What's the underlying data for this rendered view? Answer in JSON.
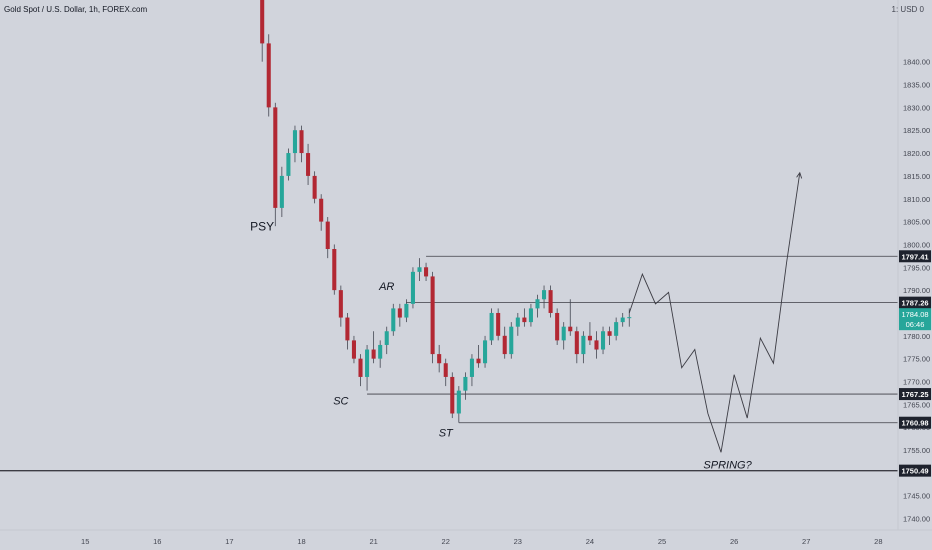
{
  "header": {
    "title": "Gold Spot / U.S. Dollar, 1h, FOREX.com",
    "currency": "1: USD 0"
  },
  "colors": {
    "up": "#26a69a",
    "down": "#b22833",
    "wick": "#434651",
    "line": "#3c3c44",
    "bg": "#d1d4dc",
    "live": "#26a69a"
  },
  "chart_data": {
    "type": "candlestick",
    "title": "Gold Spot / U.S. Dollar, 1h, FOREX.com",
    "x_tick_labels": [
      "15",
      "16",
      "17",
      "18",
      "21",
      "22",
      "23",
      "24",
      "25",
      "26",
      "27",
      "28"
    ],
    "x_tick_index": [
      -41,
      -30,
      -19,
      -8,
      3,
      14,
      25,
      36,
      47,
      58,
      69,
      80
    ],
    "y_tick_labels": [
      "1740.00",
      "1745.00",
      "1750.00",
      "1755.00",
      "1760.00",
      "1765.00",
      "1770.00",
      "1775.00",
      "1780.00",
      "1785.00",
      "1790.00",
      "1795.00",
      "1800.00",
      "1805.00",
      "1810.00",
      "1815.00",
      "1820.00",
      "1825.00",
      "1830.00",
      "1835.00",
      "1840.00"
    ],
    "ylim": [
      1737.5,
      1853.5
    ],
    "xlim": [
      -54,
      83
    ],
    "candles": [
      [
        1857,
        1858,
        1840,
        1844
      ],
      [
        1844,
        1846,
        1828,
        1830
      ],
      [
        1830,
        1831,
        1804,
        1808
      ],
      [
        1808,
        1817,
        1806,
        1815
      ],
      [
        1815,
        1821,
        1814,
        1820
      ],
      [
        1820,
        1826,
        1818,
        1825
      ],
      [
        1825,
        1826,
        1818,
        1820
      ],
      [
        1820,
        1822,
        1813,
        1815
      ],
      [
        1815,
        1816,
        1809,
        1810
      ],
      [
        1810,
        1811,
        1803,
        1805
      ],
      [
        1805,
        1806,
        1797,
        1799
      ],
      [
        1799,
        1800,
        1789,
        1790
      ],
      [
        1790,
        1791,
        1782,
        1784
      ],
      [
        1784,
        1785,
        1777,
        1779
      ],
      [
        1779,
        1780,
        1774,
        1775
      ],
      [
        1775,
        1776,
        1769,
        1771
      ],
      [
        1771,
        1778,
        1768,
        1777
      ],
      [
        1777,
        1781,
        1774,
        1775
      ],
      [
        1775,
        1779,
        1773,
        1778
      ],
      [
        1778,
        1782,
        1776,
        1781
      ],
      [
        1781,
        1787,
        1780,
        1786
      ],
      [
        1786,
        1787,
        1782,
        1784
      ],
      [
        1784,
        1788,
        1783,
        1787
      ],
      [
        1787,
        1795,
        1786,
        1794
      ],
      [
        1794,
        1797,
        1792,
        1795
      ],
      [
        1795,
        1796,
        1792,
        1793
      ],
      [
        1793,
        1794,
        1774,
        1776
      ],
      [
        1776,
        1778,
        1772,
        1774
      ],
      [
        1774,
        1775,
        1769,
        1771
      ],
      [
        1771,
        1772,
        1762,
        1763
      ],
      [
        1763,
        1769,
        1761,
        1768
      ],
      [
        1768,
        1772,
        1766,
        1771
      ],
      [
        1771,
        1776,
        1769,
        1775
      ],
      [
        1775,
        1778,
        1773,
        1774
      ],
      [
        1774,
        1780,
        1773,
        1779
      ],
      [
        1779,
        1786,
        1778,
        1785
      ],
      [
        1785,
        1786,
        1779,
        1780
      ],
      [
        1780,
        1782,
        1775,
        1776
      ],
      [
        1776,
        1783,
        1775,
        1782
      ],
      [
        1782,
        1785,
        1780,
        1784
      ],
      [
        1784,
        1786,
        1782,
        1783
      ],
      [
        1783,
        1787,
        1782,
        1786
      ],
      [
        1786,
        1789,
        1784,
        1788
      ],
      [
        1788,
        1791,
        1786,
        1790
      ],
      [
        1790,
        1791,
        1784,
        1785
      ],
      [
        1785,
        1786,
        1778,
        1779
      ],
      [
        1779,
        1783,
        1777,
        1782
      ],
      [
        1782,
        1788,
        1780,
        1781
      ],
      [
        1781,
        1782,
        1774,
        1776
      ],
      [
        1776,
        1781,
        1774,
        1780
      ],
      [
        1780,
        1783,
        1778,
        1779
      ],
      [
        1779,
        1781,
        1775,
        1777
      ],
      [
        1777,
        1782,
        1776,
        1781
      ],
      [
        1781,
        1782,
        1778,
        1780
      ],
      [
        1780,
        1784,
        1779,
        1783
      ],
      [
        1783,
        1785,
        1782,
        1784
      ],
      [
        1784,
        1786,
        1782,
        1784.08
      ]
    ],
    "first_candle_index": -14,
    "levels": [
      {
        "label": "1797.41",
        "value": 1797.41,
        "from_index": 11
      },
      {
        "label": "1787.26",
        "value": 1787.26,
        "from_index": 8
      },
      {
        "label": "1767.25",
        "value": 1767.25,
        "from_index": 2
      },
      {
        "label": "1760.98",
        "value": 1760.98,
        "from_index": 16
      },
      {
        "label": "1750.49",
        "value": 1750.49,
        "from_index": -54
      }
    ],
    "last_price": {
      "label": "1784.08",
      "countdown": "06:46",
      "value": 1784.08
    },
    "annotations": [
      {
        "text": "PSY",
        "x": -14,
        "y": 1803
      },
      {
        "text": "AR",
        "x": 5,
        "y": 1790
      },
      {
        "text": "SC",
        "x": -2,
        "y": 1765
      },
      {
        "text": "ST",
        "x": 14,
        "y": 1758
      },
      {
        "text": "SPRING?",
        "x": 57,
        "y": 1751
      }
    ],
    "projection": [
      [
        42,
        1785
      ],
      [
        44,
        1793.5
      ],
      [
        46,
        1787
      ],
      [
        48,
        1789.5
      ],
      [
        50,
        1773
      ],
      [
        52,
        1777
      ],
      [
        54,
        1763
      ],
      [
        56,
        1754.5
      ],
      [
        58,
        1771.5
      ],
      [
        60,
        1762
      ],
      [
        62,
        1779.5
      ],
      [
        64,
        1774
      ],
      [
        66,
        1796
      ],
      [
        68,
        1815.5
      ]
    ]
  }
}
